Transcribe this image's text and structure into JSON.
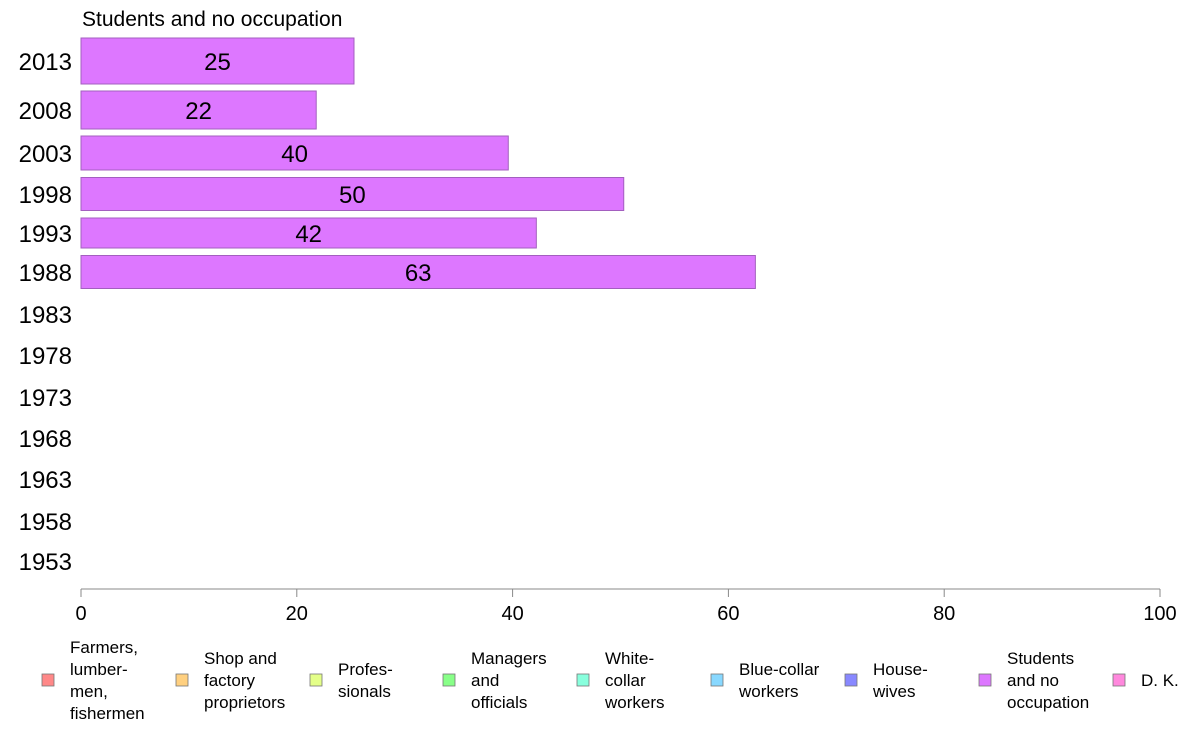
{
  "chart_data": {
    "type": "bar",
    "orientation": "horizontal",
    "title": "Students and no occupation",
    "xlabel": "",
    "ylabel": "",
    "xlim": [
      0,
      100
    ],
    "x_ticks": [
      "0",
      "20",
      "40",
      "60",
      "80",
      "100"
    ],
    "categories": [
      "2013",
      "2008",
      "2003",
      "1998",
      "1993",
      "1988",
      "1983",
      "1978",
      "1973",
      "1968",
      "1963",
      "1958",
      "1953"
    ],
    "series": [
      {
        "name": "Students and no occupation",
        "color": "#dd77ff",
        "values": [
          25.3,
          21.8,
          39.6,
          50.3,
          42.2,
          62.5,
          null,
          null,
          null,
          null,
          null,
          null,
          null
        ],
        "labels": [
          "25",
          "22",
          "40",
          "50",
          "42",
          "63",
          "",
          "",
          "",
          "",
          "",
          "",
          ""
        ]
      }
    ],
    "grid": false,
    "legend_position": "bottom",
    "legend": [
      {
        "label": [
          "Farmers,",
          "lumber-",
          "men,",
          "fishermen"
        ],
        "color": "#ff8888"
      },
      {
        "label": [
          "Shop and",
          "factory",
          "proprietors"
        ],
        "color": "#ffd080"
      },
      {
        "label": [
          "Profes-",
          "sionals"
        ],
        "color": "#e4ff88"
      },
      {
        "label": [
          "Managers",
          "and",
          "officials"
        ],
        "color": "#88ff88"
      },
      {
        "label": [
          "White-",
          "collar",
          "workers"
        ],
        "color": "#88ffdd"
      },
      {
        "label": [
          "Blue-collar",
          "workers"
        ],
        "color": "#88d8ff"
      },
      {
        "label": [
          "House-",
          "wives"
        ],
        "color": "#8888ff"
      },
      {
        "label": [
          "Students",
          "and no",
          "occupation"
        ],
        "color": "#dd77ff"
      },
      {
        "label": [
          "D. K."
        ],
        "color": "#ff88dd"
      }
    ]
  }
}
